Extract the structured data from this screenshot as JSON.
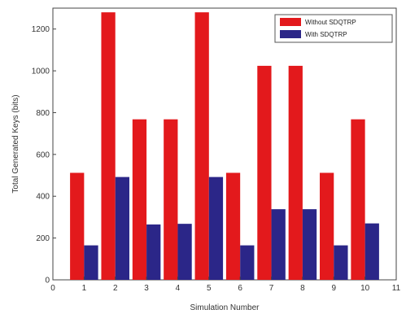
{
  "chart_data": {
    "type": "bar",
    "categories": [
      "1",
      "2",
      "3",
      "4",
      "5",
      "6",
      "7",
      "8",
      "9",
      "10"
    ],
    "x_ticks": [
      "0",
      "1",
      "2",
      "3",
      "4",
      "5",
      "6",
      "7",
      "8",
      "9",
      "10",
      "11"
    ],
    "xlim": [
      0,
      11
    ],
    "y_ticks": [
      "0",
      "200",
      "400",
      "600",
      "800",
      "1000",
      "1200"
    ],
    "ylim": [
      0,
      1300
    ],
    "xlabel": "Simulation Number",
    "ylabel": "Total Generated Keys (bits)",
    "title": "",
    "grid": false,
    "legend_position": "top-right",
    "series": [
      {
        "name": "Without SDQTRP",
        "color": "#e3191c",
        "values": [
          512,
          1280,
          768,
          768,
          1280,
          512,
          1024,
          1024,
          512,
          768
        ]
      },
      {
        "name": "With SDQTRP",
        "color": "#2b2688",
        "values": [
          165,
          492,
          265,
          268,
          492,
          165,
          338,
          338,
          165,
          270
        ]
      }
    ]
  }
}
